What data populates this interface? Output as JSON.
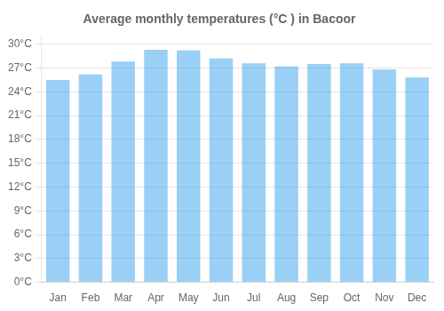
{
  "chart_data": {
    "type": "bar",
    "title": "Average monthly temperatures (°C ) in Bacoor",
    "categories": [
      "Jan",
      "Feb",
      "Mar",
      "Apr",
      "May",
      "Jun",
      "Jul",
      "Aug",
      "Sep",
      "Oct",
      "Nov",
      "Dec"
    ],
    "values": [
      25.5,
      26.2,
      27.8,
      29.3,
      29.2,
      28.2,
      27.6,
      27.2,
      27.5,
      27.6,
      26.8,
      25.8
    ],
    "ylim": [
      0,
      31
    ],
    "yticks": [
      {
        "value": 0,
        "label": "0°C"
      },
      {
        "value": 3,
        "label": "3°C"
      },
      {
        "value": 6,
        "label": "6°C"
      },
      {
        "value": 9,
        "label": "9°C"
      },
      {
        "value": 12,
        "label": "12°C"
      },
      {
        "value": 15,
        "label": "15°C"
      },
      {
        "value": 18,
        "label": "18°C"
      },
      {
        "value": 21,
        "label": "21°C"
      },
      {
        "value": 24,
        "label": "24°C"
      },
      {
        "value": 27,
        "label": "27°C"
      },
      {
        "value": 30,
        "label": "30°C"
      }
    ],
    "grid": true
  }
}
